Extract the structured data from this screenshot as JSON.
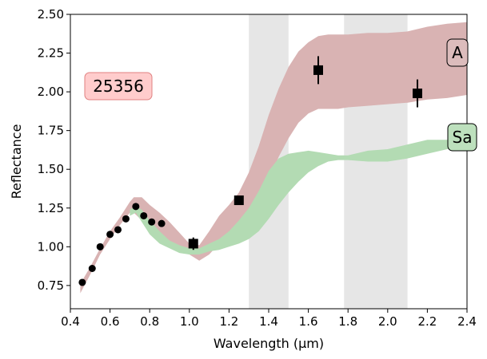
{
  "chart_data": {
    "type": "scatter",
    "xlabel": "Wavelength (µm)",
    "ylabel": "Reflectance",
    "xlim": [
      0.4,
      2.4
    ],
    "ylim": [
      0.6,
      2.5
    ],
    "x_ticks": [
      0.4,
      0.6,
      0.8,
      1.0,
      1.2,
      1.4,
      1.6,
      1.8,
      2.0,
      2.2,
      2.4
    ],
    "y_ticks": [
      0.75,
      1.0,
      1.25,
      1.5,
      1.75,
      2.0,
      2.25,
      2.5
    ],
    "grid": false,
    "object_label": "25356",
    "shaded_regions": [
      {
        "x_start": 1.3,
        "x_end": 1.5,
        "color": "#e6e6e6"
      },
      {
        "x_start": 1.78,
        "x_end": 2.1,
        "color": "#e6e6e6"
      }
    ],
    "bands": [
      {
        "name": "A",
        "color": "#d9b3b3",
        "label_color": "#dcbcbc",
        "x": [
          0.45,
          0.5,
          0.55,
          0.6,
          0.65,
          0.7,
          0.72,
          0.76,
          0.8,
          0.85,
          0.9,
          0.95,
          1.0,
          1.05,
          1.1,
          1.15,
          1.2,
          1.25,
          1.3,
          1.35,
          1.4,
          1.45,
          1.5,
          1.55,
          1.6,
          1.65,
          1.7,
          1.75,
          1.8,
          1.9,
          2.0,
          2.1,
          2.2,
          2.3,
          2.4
        ],
        "lower": [
          0.7,
          0.82,
          0.95,
          1.05,
          1.14,
          1.22,
          1.22,
          1.17,
          1.1,
          1.03,
          1.0,
          0.97,
          0.95,
          0.91,
          0.95,
          1.02,
          1.08,
          1.13,
          1.2,
          1.28,
          1.42,
          1.58,
          1.7,
          1.8,
          1.86,
          1.89,
          1.89,
          1.89,
          1.9,
          1.91,
          1.92,
          1.93,
          1.95,
          1.96,
          1.98
        ],
        "upper": [
          0.76,
          0.87,
          0.99,
          1.1,
          1.19,
          1.29,
          1.32,
          1.32,
          1.27,
          1.22,
          1.16,
          1.09,
          1.02,
          1.01,
          1.1,
          1.2,
          1.27,
          1.35,
          1.48,
          1.65,
          1.85,
          2.02,
          2.16,
          2.26,
          2.32,
          2.36,
          2.37,
          2.37,
          2.37,
          2.38,
          2.38,
          2.39,
          2.42,
          2.44,
          2.45
        ]
      },
      {
        "name": "Sa",
        "color": "#b3dbb3",
        "label_color": "#bde0bd",
        "x": [
          0.7,
          0.73,
          0.76,
          0.8,
          0.85,
          0.9,
          0.95,
          1.0,
          1.05,
          1.1,
          1.15,
          1.2,
          1.25,
          1.3,
          1.35,
          1.4,
          1.45,
          1.5,
          1.55,
          1.6,
          1.65,
          1.7,
          1.75,
          1.8,
          1.9,
          2.0,
          2.1,
          2.2,
          2.3,
          2.4
        ],
        "lower": [
          1.2,
          1.22,
          1.16,
          1.08,
          1.02,
          0.99,
          0.96,
          0.95,
          0.95,
          0.97,
          0.98,
          1.0,
          1.02,
          1.05,
          1.1,
          1.18,
          1.27,
          1.35,
          1.42,
          1.48,
          1.52,
          1.55,
          1.56,
          1.56,
          1.55,
          1.55,
          1.57,
          1.6,
          1.63,
          1.65
        ],
        "upper": [
          1.24,
          1.26,
          1.24,
          1.17,
          1.1,
          1.04,
          1.01,
          0.99,
          0.99,
          1.02,
          1.05,
          1.1,
          1.17,
          1.25,
          1.36,
          1.49,
          1.57,
          1.6,
          1.61,
          1.62,
          1.61,
          1.6,
          1.59,
          1.59,
          1.62,
          1.63,
          1.66,
          1.69,
          1.69,
          1.7
        ]
      }
    ],
    "series": [
      {
        "marker": "circle",
        "color": "#000000",
        "x": [
          0.46,
          0.51,
          0.55,
          0.6,
          0.64,
          0.68,
          0.73,
          0.77,
          0.81,
          0.86
        ],
        "y": [
          0.77,
          0.86,
          1.0,
          1.08,
          1.11,
          1.18,
          1.26,
          1.2,
          1.16,
          1.15
        ]
      },
      {
        "marker": "square",
        "color": "#000000",
        "x": [
          1.02,
          1.25,
          1.65,
          2.15
        ],
        "y": [
          1.02,
          1.3,
          2.14,
          1.99
        ],
        "yerr": [
          0.04,
          0.02,
          0.09,
          0.09
        ]
      }
    ]
  }
}
